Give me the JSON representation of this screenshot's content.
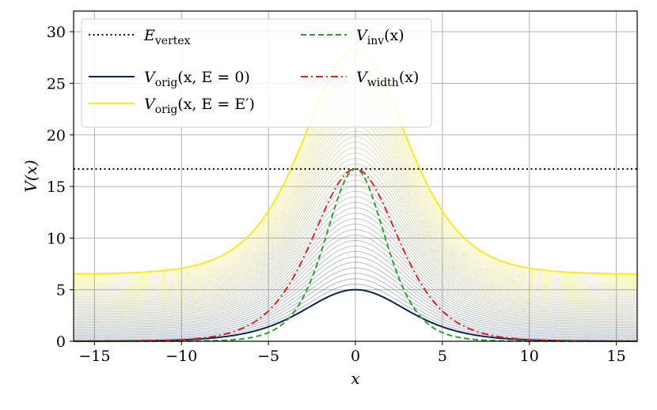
{
  "chart_data": {
    "type": "line",
    "title": "",
    "xlabel": "x",
    "ylabel": "V(x)",
    "xlim": [
      -16.2,
      16.2
    ],
    "ylim": [
      0,
      32
    ],
    "grid": true,
    "xticks": [
      -15,
      -10,
      -5,
      0,
      5,
      10,
      15
    ],
    "yticks": [
      0,
      5,
      10,
      15,
      20,
      25,
      30
    ],
    "xtick_labels": [
      "−15",
      "−10",
      "−5",
      "0",
      "5",
      "10",
      "15"
    ],
    "ytick_labels": [
      "0",
      "5",
      "10",
      "15",
      "20",
      "25",
      "30"
    ],
    "legend_position": "top-left",
    "series": [
      {
        "name": "E_vertex",
        "style": "dotted",
        "color": "#000000",
        "kind": "horizontal",
        "value": 16.7
      },
      {
        "name": "V_orig(x, E = 0)",
        "style": "solid",
        "color": "#0b2350",
        "kind": "sech2",
        "peak": 5.0,
        "baseline": 0.0,
        "width": 4.0
      },
      {
        "name": "V_orig(x, E = E′)",
        "style": "solid",
        "color": "#fde725",
        "kind": "sech2",
        "peak": 28.3,
        "baseline": 6.5,
        "width": 4.0
      },
      {
        "name": "V_inv(x)",
        "style": "dashed",
        "color": "#2ca02c",
        "kind": "sech2",
        "peak": 16.7,
        "baseline": 0.0,
        "width": 2.3
      },
      {
        "name": "V_width(x)",
        "style": "dashdot",
        "color": "#d62728",
        "kind": "sech2",
        "peak": 16.7,
        "baseline": 0.0,
        "width": 3.3
      }
    ],
    "family": {
      "description": "intermediate V_orig curves between E = 0 and E = E′",
      "count": 44,
      "start_color": "#1f3b6e",
      "end_color": "#fde725"
    }
  },
  "legend": {
    "entries": [
      {
        "label": "E",
        "sub": "vertex",
        "rest": ""
      },
      {
        "label": "V",
        "sub": "orig",
        "rest": "(x, E = 0)"
      },
      {
        "label": "V",
        "sub": "orig",
        "rest": "(x, E = E′)"
      },
      {
        "label": "V",
        "sub": "inv",
        "rest": "(x)"
      },
      {
        "label": "V",
        "sub": "width",
        "rest": "(x)"
      }
    ]
  }
}
